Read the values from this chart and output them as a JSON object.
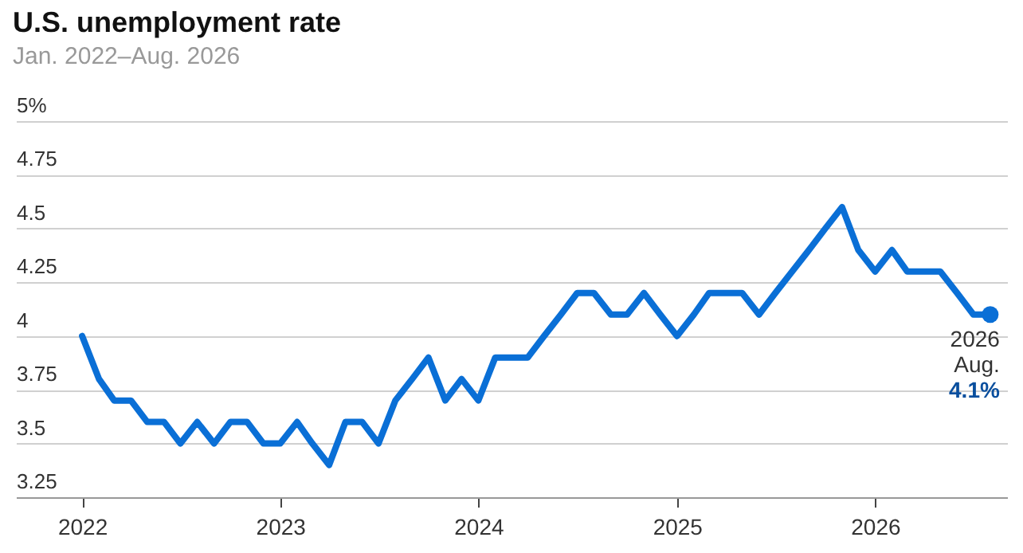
{
  "chart_data": {
    "type": "line",
    "title": "U.S. unemployment rate",
    "subtitle": "Jan. 2022–Aug. 2026",
    "x": [
      "2022-01",
      "2022-02",
      "2022-03",
      "2022-04",
      "2022-05",
      "2022-06",
      "2022-07",
      "2022-08",
      "2022-09",
      "2022-10",
      "2022-11",
      "2022-12",
      "2023-01",
      "2023-02",
      "2023-03",
      "2023-04",
      "2023-05",
      "2023-06",
      "2023-07",
      "2023-08",
      "2023-09",
      "2023-10",
      "2023-11",
      "2023-12",
      "2024-01",
      "2024-02",
      "2024-03",
      "2024-04",
      "2024-05",
      "2024-06",
      "2024-07",
      "2024-08",
      "2024-09",
      "2024-10",
      "2024-11",
      "2024-12",
      "2025-01",
      "2025-02",
      "2025-03",
      "2025-04",
      "2025-05",
      "2025-06",
      "2025-07",
      "2025-08",
      "2025-09",
      "2025-10",
      "2025-11",
      "2025-12",
      "2026-01",
      "2026-02",
      "2026-03",
      "2026-04",
      "2026-05",
      "2026-06",
      "2026-07",
      "2026-08"
    ],
    "series": [
      {
        "color": "#0a6fd6",
        "values": [
          4.0,
          3.8,
          3.7,
          3.7,
          3.6,
          3.6,
          3.5,
          3.6,
          3.5,
          3.6,
          3.6,
          3.5,
          3.5,
          3.6,
          3.5,
          3.4,
          3.6,
          3.6,
          3.5,
          3.7,
          3.8,
          3.9,
          3.7,
          3.8,
          3.7,
          3.9,
          3.9,
          3.9,
          4.0,
          4.1,
          4.2,
          4.2,
          4.1,
          4.1,
          4.2,
          4.1,
          4.0,
          4.1,
          4.2,
          4.2,
          4.2,
          4.1,
          4.2,
          4.3,
          4.4,
          4.5,
          4.6,
          4.4,
          4.3,
          4.4,
          4.3,
          4.3,
          4.3,
          4.2,
          4.1,
          4.1
        ]
      }
    ],
    "xlim": [
      "2021-09",
      "2026-09"
    ],
    "xticks": [
      "2022",
      "2023",
      "2024",
      "2025",
      "2026"
    ],
    "ylim": [
      3.25,
      5
    ],
    "yticks": [
      3.25,
      3.5,
      3.75,
      4,
      4.25,
      4.5,
      4.75,
      {
        "value": 5,
        "label": "5%"
      }
    ],
    "grid": "y",
    "annotations": [
      {
        "text": "2026 Aug.",
        "x": "2026-08",
        "y": 4.1
      },
      {
        "text": "4.1%",
        "x": "2026-08",
        "y": 4.1
      }
    ]
  }
}
